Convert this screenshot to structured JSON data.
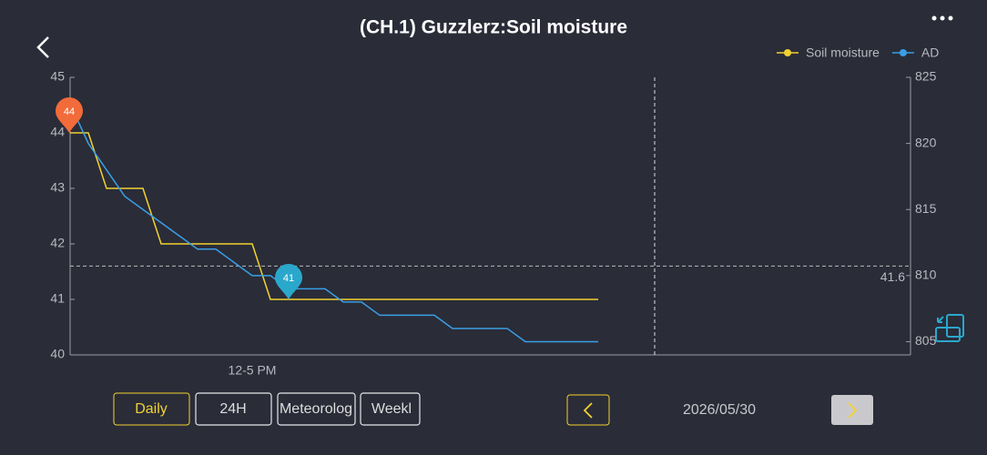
{
  "header": {
    "title": "(CH.1) Guzzlerz:Soil moisture"
  },
  "chart_data": {
    "type": "line",
    "categories": [
      null,
      null,
      null,
      null,
      null,
      null,
      null,
      null,
      null,
      null,
      "12-5 PM",
      null,
      null,
      null,
      null,
      null,
      null,
      null,
      null,
      null,
      null,
      null,
      null,
      null,
      null,
      null,
      null,
      null,
      null,
      null,
      null,
      null,
      null,
      null,
      null,
      null,
      null,
      null,
      null,
      null,
      null,
      null,
      null,
      null,
      null,
      null,
      null
    ],
    "series": [
      {
        "name": "Soil moisture",
        "color": "#f2d230",
        "values": [
          44,
          44,
          43,
          43,
          43,
          42,
          42,
          42,
          42,
          42,
          42,
          41,
          41,
          41,
          41,
          41,
          41,
          41,
          41,
          41,
          41,
          41,
          41,
          41,
          41,
          41,
          41,
          41,
          41,
          41,
          null,
          null,
          null,
          null,
          null,
          null,
          null,
          null,
          null,
          null,
          null,
          null,
          null,
          null,
          null,
          null,
          null
        ]
      },
      {
        "name": "AD",
        "color": "#3a9fe6",
        "axis": "y2",
        "values": [
          823,
          820,
          818,
          816,
          815,
          814,
          813,
          812,
          812,
          811,
          810,
          810,
          809,
          809,
          809,
          808,
          808,
          807,
          807,
          807,
          807,
          806,
          806,
          806,
          806,
          805,
          805,
          805,
          805,
          805,
          null,
          null,
          null,
          null,
          null,
          null,
          null,
          null,
          null,
          null,
          null,
          null,
          null,
          null,
          null,
          null,
          null
        ]
      }
    ],
    "ylim": [
      40,
      45
    ],
    "yticks": [
      40,
      41,
      42,
      43,
      44,
      45
    ],
    "y2lim": [
      804,
      825
    ],
    "y2ticks": [
      805,
      810,
      815,
      820,
      825
    ],
    "reference_line": 41.6,
    "pins": [
      {
        "value": 44,
        "color": "#f26b3a"
      },
      {
        "value": 41,
        "color": "#2aa8cc"
      }
    ],
    "legend": "top-right"
  },
  "tabs": [
    "Daily",
    "24H",
    "Meteorolog",
    "Weekl"
  ],
  "date_nav": {
    "date": "2026/05/30"
  }
}
